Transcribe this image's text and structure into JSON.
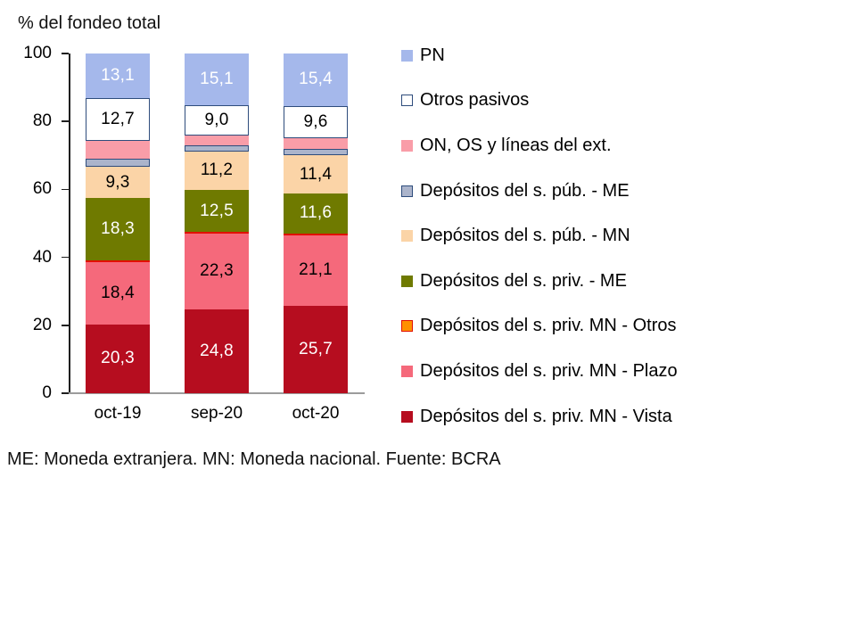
{
  "title": "% del fondeo total",
  "footnote": "ME: Moneda extranjera. MN: Moneda nacional. Fuente: BCRA",
  "accent_colors": {
    "navy_border": "#2E4C7C",
    "red_border": "#E11000",
    "axis": "#1F1F1F",
    "baseline": "#9C9C9C"
  },
  "legend": [
    {
      "label": "PN",
      "color": "#A5B8EB",
      "border": "#A5B8EB"
    },
    {
      "label": "Otros pasivos",
      "color": "#FFFFFF",
      "border": "#2E4C7C"
    },
    {
      "label": "ON, OS y líneas del ext.",
      "color": "#F99DA8",
      "border": "#F99DA8"
    },
    {
      "label": "Depósitos del s. púb. - ME",
      "color": "#ABB4CB",
      "border": "#2E4C7C"
    },
    {
      "label": "Depósitos del s. púb. - MN",
      "color": "#FBD4A7",
      "border": "#FBD4A7"
    },
    {
      "label": "Depósitos del s. priv. - ME",
      "color": "#6F7A00",
      "border": "#6F7A00"
    },
    {
      "label": "Depósitos del s. priv. MN - Otros",
      "color": "#FF9000",
      "border": "#E11000"
    },
    {
      "label": "Depósitos del s. priv. MN - Plazo",
      "color": "#F5697B",
      "border": "#F5697B"
    },
    {
      "label": "Depósitos del s. priv. MN - Vista",
      "color": "#B60D1F",
      "border": "#B60D1F"
    }
  ],
  "chart_data": {
    "type": "bar",
    "stacked": true,
    "title": "% del fondeo total",
    "xlabel": "",
    "ylabel": "% del fondeo total",
    "ylim": [
      0,
      100
    ],
    "yticks": [
      0,
      20,
      40,
      60,
      80,
      100
    ],
    "grid": false,
    "legend_position": "right",
    "categories": [
      "oct-19",
      "sep-20",
      "oct-20"
    ],
    "series": [
      {
        "name": "Depósitos del s. priv. MN - Vista",
        "color": "#B60D1F",
        "border": null,
        "values": [
          20.3,
          24.8,
          25.7
        ],
        "labels": [
          "20,3",
          "24,8",
          "25,7"
        ],
        "label_color": "#FFFFFF",
        "estimated": false
      },
      {
        "name": "Depósitos del s. priv. MN - Plazo",
        "color": "#F5697B",
        "border": null,
        "values": [
          18.4,
          22.3,
          21.1
        ],
        "labels": [
          "18,4",
          "22,3",
          "21,1"
        ],
        "label_color": "#000000",
        "estimated": false
      },
      {
        "name": "Depósitos del s. priv. MN - Otros",
        "color": "#FF9000",
        "border": "#E11000",
        "values": [
          0.4,
          0.3,
          0.3
        ],
        "labels": [
          "",
          "",
          ""
        ],
        "label_color": "#000000",
        "estimated": true
      },
      {
        "name": "Depósitos del s. priv. - ME",
        "color": "#6F7A00",
        "border": null,
        "values": [
          18.3,
          12.5,
          11.6
        ],
        "labels": [
          "18,3",
          "12,5",
          "11,6"
        ],
        "label_color": "#FFFFFF",
        "estimated": false
      },
      {
        "name": "Depósitos del s. púb. - MN",
        "color": "#FBD4A7",
        "border": null,
        "values": [
          9.3,
          11.2,
          11.4
        ],
        "labels": [
          "9,3",
          "11,2",
          "11,4"
        ],
        "label_color": "#000000",
        "estimated": false
      },
      {
        "name": "Depósitos del s. púb. - ME",
        "color": "#ABB4CB",
        "border": "#2E4C7C",
        "values": [
          2.2,
          1.8,
          1.8
        ],
        "labels": [
          "",
          "",
          ""
        ],
        "label_color": "#000000",
        "estimated": true
      },
      {
        "name": "ON, OS y líneas del ext.",
        "color": "#F99DA8",
        "border": null,
        "values": [
          5.3,
          3.0,
          3.1
        ],
        "labels": [
          "",
          "",
          ""
        ],
        "label_color": "#000000",
        "estimated": true
      },
      {
        "name": "Otros pasivos",
        "color": "#FFFFFF",
        "border": "#2E4C7C",
        "values": [
          12.7,
          9.0,
          9.6
        ],
        "labels": [
          "12,7",
          "9,0",
          "9,6"
        ],
        "label_color": "#000000",
        "estimated": false
      },
      {
        "name": "PN",
        "color": "#A5B8EB",
        "border": null,
        "values": [
          13.1,
          15.1,
          15.4
        ],
        "labels": [
          "13,1",
          "15,1",
          "15,4"
        ],
        "label_color": "#FFFFFF",
        "estimated": false
      }
    ]
  }
}
